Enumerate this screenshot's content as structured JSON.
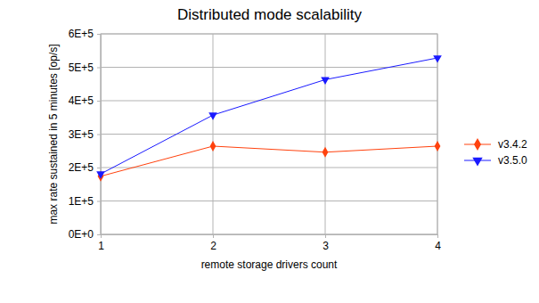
{
  "chart_data": {
    "type": "line",
    "title": "Distributed mode scalability",
    "x_label": "remote storage drivers count",
    "y_label": "max rate sustained in 5 minutes [op/s]",
    "x": [
      1,
      2,
      3,
      4
    ],
    "series": [
      {
        "name": "v3.4.2",
        "color": "#ff420e",
        "marker": "diamond",
        "values": [
          174000,
          264000,
          246000,
          264000
        ]
      },
      {
        "name": "v3.5.0",
        "color": "#1a1aff",
        "marker": "triangle-down",
        "values": [
          181000,
          357000,
          463000,
          528000
        ]
      }
    ],
    "xlim": [
      1,
      4
    ],
    "xticks": [
      1,
      2,
      3,
      4
    ],
    "ylim": [
      0,
      600000
    ],
    "yticks": [
      {
        "value": 0,
        "label": "0E+0"
      },
      {
        "value": 100000,
        "label": "1E+5"
      },
      {
        "value": 200000,
        "label": "2E+5"
      },
      {
        "value": 300000,
        "label": "3E+5"
      },
      {
        "value": 400000,
        "label": "4E+5"
      },
      {
        "value": 500000,
        "label": "5E+5"
      },
      {
        "value": 600000,
        "label": "6E+5"
      }
    ],
    "grid": true,
    "legend": "right"
  }
}
